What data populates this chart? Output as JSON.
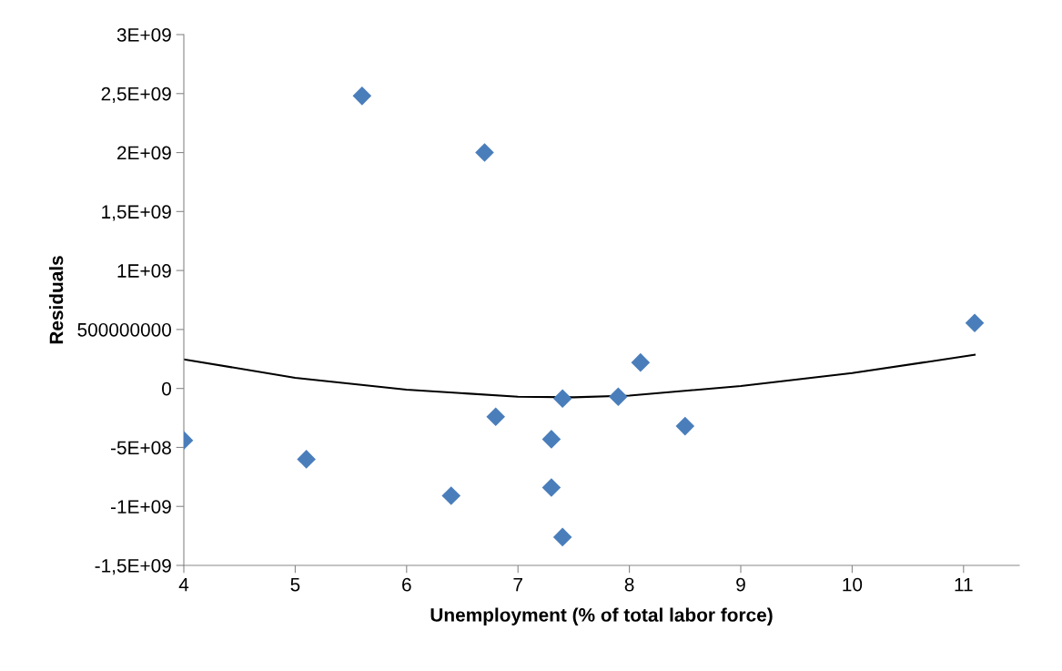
{
  "chart_data": {
    "type": "scatter",
    "xlabel": "Unemployment (% of total labor force)",
    "ylabel": "Residuals",
    "xlim": [
      4,
      11.5
    ],
    "xticks": [
      4,
      5,
      6,
      7,
      8,
      9,
      10,
      11
    ],
    "ylim": [
      -1500000000,
      3000000000
    ],
    "yticks": [
      {
        "value": -1500000000,
        "label": "-1,5E+09"
      },
      {
        "value": -1000000000,
        "label": "-1E+09"
      },
      {
        "value": -500000000,
        "label": "-5E+08"
      },
      {
        "value": 0,
        "label": "0"
      },
      {
        "value": 500000000,
        "label": "500000000"
      },
      {
        "value": 1000000000,
        "label": "1E+09"
      },
      {
        "value": 1500000000,
        "label": "1,5E+09"
      },
      {
        "value": 2000000000,
        "label": "2E+09"
      },
      {
        "value": 2500000000,
        "label": "2,5E+09"
      },
      {
        "value": 3000000000,
        "label": "3E+09"
      }
    ],
    "grid": false,
    "series": [
      {
        "color": "#4a7ebb",
        "marker": "diamond",
        "x": [
          4.0,
          5.1,
          5.6,
          6.4,
          6.7,
          6.8,
          7.3,
          7.3,
          7.4,
          7.4,
          7.9,
          8.1,
          8.5,
          11.1
        ],
        "values": [
          -440000000,
          -600000000,
          2480000000,
          -910000000,
          2000000000,
          -240000000,
          -430000000,
          -840000000,
          -85000000,
          -1260000000,
          -70000000,
          220000000,
          -320000000,
          555000000
        ]
      },
      {
        "type": "line",
        "color": "#000000",
        "marker": "none",
        "line_style": "solid",
        "x": [
          4,
          5,
          6,
          7,
          7.5,
          8,
          9,
          10,
          11.1
        ],
        "values": [
          247000000,
          90000000,
          -10000000,
          -70000000,
          -75000000,
          -60000000,
          20000000,
          130000000,
          285000000
        ]
      }
    ]
  }
}
